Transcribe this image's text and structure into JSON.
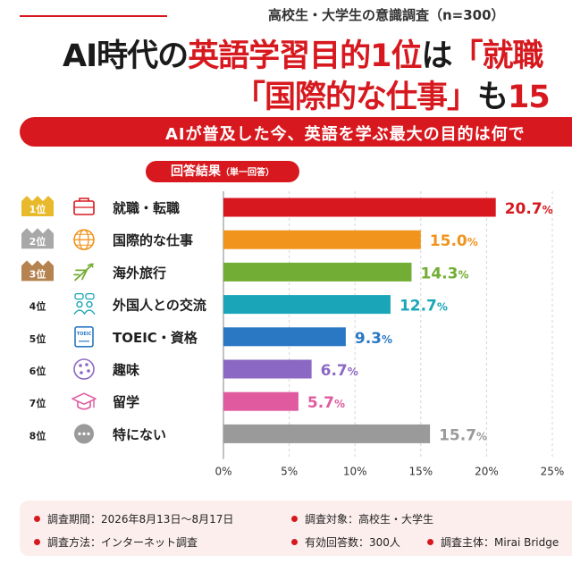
{
  "survey_tag": "高校生・大学生の意識調査（n=300）",
  "headline": {
    "line1_a": "AI時代の",
    "line1_b": "英語学習目的1位",
    "line1_c": "は",
    "line1_d": "「就職",
    "line2_a": "「国際的な仕事」",
    "line2_b": "も",
    "line2_c": "15"
  },
  "banner": "AIが普及した今、英語を学ぶ最大の目的は何で",
  "answer_pill": {
    "label": "回答結果",
    "sub": "（単一回答）"
  },
  "chart_data": {
    "type": "bar",
    "orientation": "horizontal",
    "categories": [
      "就職・転職",
      "国際的な仕事",
      "海外旅行",
      "外国人との交流",
      "TOEIC・資格",
      "趣味",
      "留学",
      "特にない"
    ],
    "ranks": [
      "1位",
      "2位",
      "3位",
      "4位",
      "5位",
      "6位",
      "7位",
      "8位"
    ],
    "values": [
      20.7,
      15.0,
      14.3,
      12.7,
      9.3,
      6.7,
      5.7,
      15.7
    ],
    "value_labels": [
      "20.7",
      "15.0",
      "14.3",
      "12.7",
      "9.3",
      "6.7",
      "5.7",
      "15.7"
    ],
    "unit": "%",
    "colors": [
      "#d7191f",
      "#f0941d",
      "#72ae35",
      "#1aa6b8",
      "#2a78c4",
      "#8b68c4",
      "#e05aa0",
      "#9a9a9a"
    ],
    "icons": [
      "briefcase-icon",
      "globe-icon",
      "airplane-icon",
      "people-chat-icon",
      "toeic-book-icon",
      "hobby-palette-icon",
      "graduation-cap-icon",
      "ellipsis-icon"
    ],
    "medal_colors": [
      "#e8b92a",
      "#a8a8a8",
      "#b58350"
    ],
    "xlim": [
      0,
      25
    ],
    "xticks": [
      0,
      5,
      10,
      15,
      20,
      25
    ],
    "xtick_labels": [
      "0%",
      "5%",
      "10%",
      "15%",
      "20%",
      "25%"
    ],
    "grid": true
  },
  "footer": {
    "period": "調査期間：2026年8月13日〜8月17日",
    "target": "調査対象：高校生・大学生",
    "method": "調査方法：インターネット調査",
    "responses": "有効回答数：300人",
    "organizer": "調査主体：Mirai Bridge"
  }
}
